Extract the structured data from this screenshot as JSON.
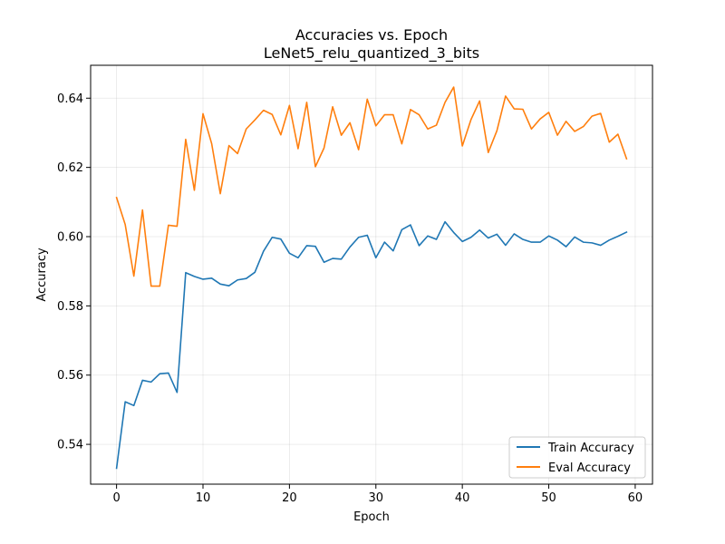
{
  "chart_data": {
    "type": "line",
    "title": "Accuracies vs. Epoch",
    "subtitle": "LeNet5_relu_quantized_3_bits",
    "xlabel": "Epoch",
    "ylabel": "Accuracy",
    "xlim": [
      -3,
      62
    ],
    "ylim": [
      0.5285,
      0.6495
    ],
    "xticks": [
      0,
      10,
      20,
      30,
      40,
      50,
      60
    ],
    "yticks": [
      0.54,
      0.56,
      0.58,
      0.6,
      0.62,
      0.64
    ],
    "ytick_labels": [
      "0.54",
      "0.56",
      "0.58",
      "0.60",
      "0.62",
      "0.64"
    ],
    "grid": true,
    "legend_position": "lower-right",
    "x": [
      0,
      1,
      2,
      3,
      4,
      5,
      6,
      7,
      8,
      9,
      10,
      11,
      12,
      13,
      14,
      15,
      16,
      17,
      18,
      19,
      20,
      21,
      22,
      23,
      24,
      25,
      26,
      27,
      28,
      29,
      30,
      31,
      32,
      33,
      34,
      35,
      36,
      37,
      38,
      39,
      40,
      41,
      42,
      43,
      44,
      45,
      46,
      47,
      48,
      49,
      50,
      51,
      52,
      53,
      54,
      55,
      56,
      57,
      58,
      59
    ],
    "series": [
      {
        "name": "Train Accuracy",
        "color": "#1f77b4",
        "values": [
          0.5331,
          0.5523,
          0.5512,
          0.5585,
          0.558,
          0.5604,
          0.5606,
          0.555,
          0.5896,
          0.5885,
          0.5877,
          0.588,
          0.5863,
          0.5858,
          0.5875,
          0.5879,
          0.5897,
          0.5958,
          0.5998,
          0.5993,
          0.5952,
          0.5939,
          0.5974,
          0.5972,
          0.5926,
          0.5937,
          0.5935,
          0.597,
          0.5998,
          0.6004,
          0.5939,
          0.5984,
          0.5959,
          0.602,
          0.6034,
          0.5974,
          0.6002,
          0.5992,
          0.6043,
          0.6012,
          0.5986,
          0.5998,
          0.6019,
          0.5996,
          0.6007,
          0.5975,
          0.6008,
          0.5992,
          0.5984,
          0.5984,
          0.6002,
          0.599,
          0.5971,
          0.5999,
          0.5984,
          0.5982,
          0.5975,
          0.599,
          0.6001,
          0.6013
        ]
      },
      {
        "name": "Eval Accuracy",
        "color": "#ff7f0e",
        "values": [
          0.6113,
          0.6035,
          0.5886,
          0.6077,
          0.5857,
          0.5857,
          0.6033,
          0.603,
          0.6281,
          0.6134,
          0.6355,
          0.6269,
          0.6124,
          0.6263,
          0.624,
          0.6311,
          0.6337,
          0.6365,
          0.6353,
          0.6294,
          0.6379,
          0.6254,
          0.6388,
          0.6202,
          0.6256,
          0.6375,
          0.6293,
          0.6329,
          0.6251,
          0.6397,
          0.632,
          0.6352,
          0.6352,
          0.6268,
          0.6367,
          0.6352,
          0.6311,
          0.6322,
          0.6388,
          0.6432,
          0.6262,
          0.6338,
          0.6392,
          0.6243,
          0.6306,
          0.6406,
          0.6369,
          0.6368,
          0.6311,
          0.634,
          0.6359,
          0.6293,
          0.6333,
          0.6304,
          0.6318,
          0.6348,
          0.6356,
          0.6273,
          0.6296,
          0.6225
        ]
      }
    ]
  }
}
